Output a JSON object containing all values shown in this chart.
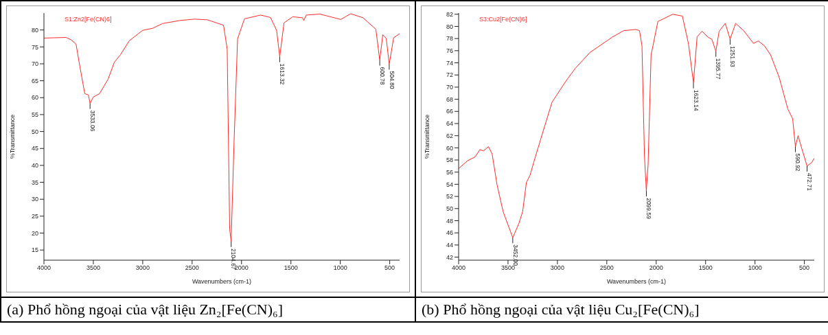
{
  "chart_data": [
    {
      "type": "line",
      "title": "(a) Phổ hồng ngoại của vật liệu Zn₂[Fe(CN)₆]",
      "xlabel": "Wavenumbers (cm-1)",
      "ylabel": "%Transmittance",
      "xlim": [
        4000,
        400
      ],
      "xticks": [
        4000,
        3500,
        3000,
        2500,
        2000,
        1500,
        1000,
        500
      ],
      "ylim": [
        12,
        85
      ],
      "yticks": [
        15,
        20,
        25,
        30,
        35,
        40,
        45,
        50,
        55,
        60,
        65,
        70,
        75,
        80
      ],
      "legend": "top left",
      "grid": false,
      "series": [
        {
          "name": "S1:Zn2[Fe(CN)6]",
          "color": "#ff2a2a",
          "x": [
            4000,
            3775,
            3725,
            3675,
            3637,
            3587,
            3550,
            3533,
            3500,
            3437,
            3350,
            3287,
            3225,
            3137,
            3000,
            2900,
            2800,
            2625,
            2475,
            2345,
            2182,
            2145,
            2120,
            2105,
            2077,
            2040,
            1970,
            1807,
            1707,
            1645,
            1613,
            1570,
            1482,
            1382,
            1370,
            1345,
            1207,
            995,
            895,
            770,
            640,
            601,
            570,
            535,
            505,
            460,
            400
          ],
          "values": [
            77.6,
            77.8,
            77.1,
            75.8,
            69.3,
            61.2,
            60.8,
            58.3,
            60.2,
            61.2,
            65.5,
            70.5,
            72.7,
            76.8,
            79.9,
            80.5,
            81.9,
            82.8,
            83.2,
            83.0,
            81.4,
            74.3,
            21.2,
            17.5,
            45.6,
            77.4,
            83.3,
            84.4,
            83.7,
            79.9,
            72.1,
            82.1,
            83.9,
            83.6,
            82.8,
            84.4,
            84.7,
            83.1,
            84.8,
            83.6,
            80.2,
            71.1,
            78.6,
            77.5,
            69.9,
            77.7,
            78.9
          ]
        }
      ],
      "annotations": [
        {
          "text": "3533.06",
          "x": 3533.06,
          "y": 58.3
        },
        {
          "text": "2104.67",
          "x": 2104.67,
          "y": 17.5
        },
        {
          "text": "1613.32",
          "x": 1613.32,
          "y": 72.1
        },
        {
          "text": "600.78",
          "x": 600.78,
          "y": 71.1
        },
        {
          "text": "504.80",
          "x": 504.8,
          "y": 69.9
        }
      ]
    },
    {
      "type": "line",
      "title": "(b) Phổ hồng ngoại của vật liệu Cu₂[Fe(CN)₆]",
      "xlabel": "Wavenumbers (cm-1)",
      "ylabel": "%Transmittance",
      "xlim": [
        4000,
        400
      ],
      "xticks": [
        4000,
        3500,
        3000,
        2500,
        2000,
        1500,
        1000,
        500
      ],
      "ylim": [
        41.5,
        82.2
      ],
      "yticks": [
        42,
        44,
        46,
        48,
        50,
        52,
        54,
        56,
        58,
        60,
        62,
        64,
        66,
        68,
        70,
        72,
        74,
        76,
        78,
        80,
        82
      ],
      "legend": "top left",
      "grid": false,
      "series": [
        {
          "name": "S3:Cu2[Fe(CN)6]",
          "color": "#ff2a2a",
          "x": [
            4000,
            3908,
            3834,
            3785,
            3748,
            3698,
            3661,
            3611,
            3550,
            3452,
            3389,
            3352,
            3314,
            3277,
            3240,
            3166,
            3055,
            2918,
            2819,
            2671,
            2448,
            2330,
            2206,
            2169,
            2144,
            2119,
            2100,
            2082,
            2052,
            1983,
            1834,
            1735,
            1673,
            1623,
            1586,
            1536,
            1474,
            1437,
            1396,
            1363,
            1301,
            1252,
            1196,
            1115,
            1015,
            966,
            904,
            842,
            755,
            668,
            619,
            591,
            564,
            532,
            473,
            425,
            400
          ],
          "values": [
            56.6,
            57.9,
            58.5,
            59.7,
            59.5,
            60.2,
            59.0,
            53.9,
            49.5,
            45.2,
            47.6,
            49.5,
            54.3,
            55.5,
            57.6,
            61.6,
            67.5,
            70.9,
            73.1,
            75.7,
            78.2,
            79.3,
            79.5,
            79.3,
            76.8,
            58.7,
            52.9,
            57.2,
            75.3,
            80.8,
            82.0,
            81.7,
            77.1,
            70.7,
            78.3,
            79.2,
            78.2,
            77.9,
            75.9,
            79.2,
            80.5,
            77.9,
            80.5,
            79.3,
            77.2,
            77.6,
            76.8,
            75.3,
            71.6,
            66.4,
            64.8,
            60.2,
            62.0,
            60.2,
            57.0,
            57.6,
            58.3
          ]
        }
      ],
      "annotations": [
        {
          "text": "3452.00",
          "x": 3452,
          "y": 45.2
        },
        {
          "text": "2099.59",
          "x": 2099.59,
          "y": 52.9
        },
        {
          "text": "1623.14",
          "x": 1623.14,
          "y": 70.7
        },
        {
          "text": "1395.77",
          "x": 1395.77,
          "y": 75.9
        },
        {
          "text": "1251.93",
          "x": 1251.93,
          "y": 77.9
        },
        {
          "text": "590.92",
          "x": 590.92,
          "y": 60.2
        },
        {
          "text": "472.71",
          "x": 472.71,
          "y": 57.0
        }
      ]
    }
  ]
}
